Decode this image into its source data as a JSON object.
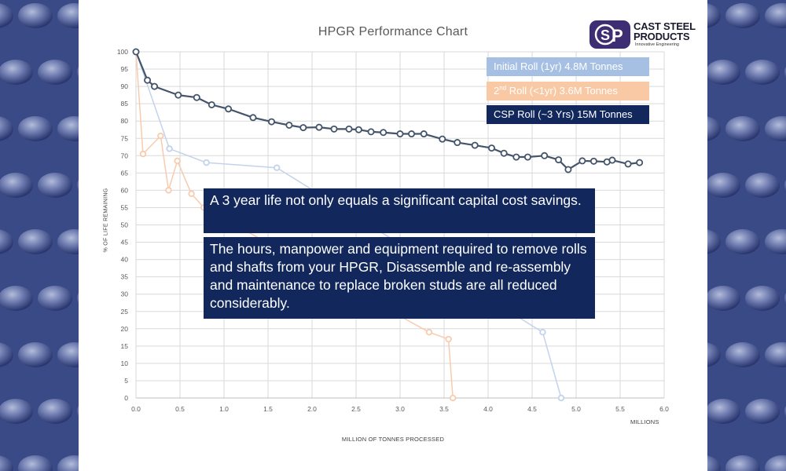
{
  "chart_data": {
    "type": "line",
    "title": "HPGR Performance Chart",
    "xlabel": "MILLION OF TONNES PROCESSED",
    "x_unit_label": "MILLIONS",
    "ylabel": "% OF LIFE REMAINING",
    "xlim": [
      0,
      6.0
    ],
    "ylim": [
      0,
      100
    ],
    "x_ticks": [
      "0.0",
      "0.5",
      "1.0",
      "1.5",
      "2.0",
      "2.5",
      "3.0",
      "3.5",
      "4.0",
      "4.5",
      "5.0",
      "5.5",
      "6.0"
    ],
    "y_ticks": [
      "0",
      "5",
      "10",
      "15",
      "20",
      "25",
      "30",
      "35",
      "40",
      "45",
      "50",
      "55",
      "60",
      "65",
      "70",
      "75",
      "80",
      "85",
      "90",
      "95",
      "100"
    ],
    "grid": true,
    "legend_position": "top-right",
    "series": [
      {
        "name": "Initial Roll (1yr) 4.8M Tonnes",
        "color": "#c3d3ea",
        "points": [
          [
            0,
            100
          ],
          [
            0.38,
            72
          ],
          [
            0.8,
            68
          ],
          [
            1.6,
            66.5
          ],
          [
            4.62,
            19
          ],
          [
            4.83,
            0
          ]
        ]
      },
      {
        "name": "2nd Roll (<1yr) 3.6M Tonnes",
        "color": "#f8cbad",
        "points": [
          [
            0,
            100
          ],
          [
            0.08,
            70.5
          ],
          [
            0.28,
            75.7
          ],
          [
            0.37,
            60
          ],
          [
            0.47,
            68.5
          ],
          [
            0.63,
            59
          ],
          [
            0.77,
            55
          ],
          [
            3.33,
            19
          ],
          [
            3.55,
            17
          ],
          [
            3.6,
            0
          ]
        ]
      },
      {
        "name": "CSP Roll (~3 Yrs) 15M Tonnes",
        "color": "#44546a",
        "points": [
          [
            0,
            100
          ],
          [
            0.13,
            91.8
          ],
          [
            0.21,
            90
          ],
          [
            0.48,
            87.5
          ],
          [
            0.69,
            86.8
          ],
          [
            0.86,
            84.7
          ],
          [
            1.05,
            83.5
          ],
          [
            1.33,
            81
          ],
          [
            1.54,
            79.8
          ],
          [
            1.74,
            78.8
          ],
          [
            1.9,
            78.1
          ],
          [
            2.08,
            78.2
          ],
          [
            2.25,
            77.7
          ],
          [
            2.42,
            77.7
          ],
          [
            2.53,
            77.5
          ],
          [
            2.67,
            76.9
          ],
          [
            2.81,
            76.7
          ],
          [
            3.0,
            76.3
          ],
          [
            3.13,
            76.3
          ],
          [
            3.27,
            76.3
          ],
          [
            3.48,
            74.8
          ],
          [
            3.65,
            73.8
          ],
          [
            3.85,
            73
          ],
          [
            4.04,
            72.2
          ],
          [
            4.18,
            70.7
          ],
          [
            4.32,
            69.6
          ],
          [
            4.45,
            69.6
          ],
          [
            4.64,
            70
          ],
          [
            4.8,
            68.8
          ],
          [
            4.91,
            66
          ],
          [
            5.07,
            68.5
          ],
          [
            5.2,
            68.4
          ],
          [
            5.35,
            68.2
          ],
          [
            5.41,
            68.7
          ],
          [
            5.59,
            67.6
          ],
          [
            5.72,
            68
          ]
        ]
      }
    ]
  },
  "legend": {
    "initial": {
      "label": "Initial Roll (1yr) 4.8M Tonnes",
      "bg": "#a6c0e4"
    },
    "second": {
      "pre": "2",
      "sup": "nd",
      "post": " Roll (<1yr) 3.6M Tonnes",
      "bg": "#f8c9a4"
    },
    "csp": {
      "label": "CSP Roll (~3 Yrs) 15M Tonnes",
      "bg": "#12285d"
    }
  },
  "callouts": [
    "A 3 year life not only equals a significant capital cost savings.",
    "The hours, manpower and equipment required to remove rolls and shafts from your HPGR, Disassemble and re-assembly and maintenance to replace broken studs are all reduced considerably."
  ],
  "logo": {
    "line1": "CAST STEEL",
    "line2": "PRODUCTS",
    "tagline": "Innovative Engineering",
    "brand_color": "#3d2e73"
  },
  "colors": {
    "background_steel": "#3a4a86",
    "callout_bg": "#12285d"
  }
}
